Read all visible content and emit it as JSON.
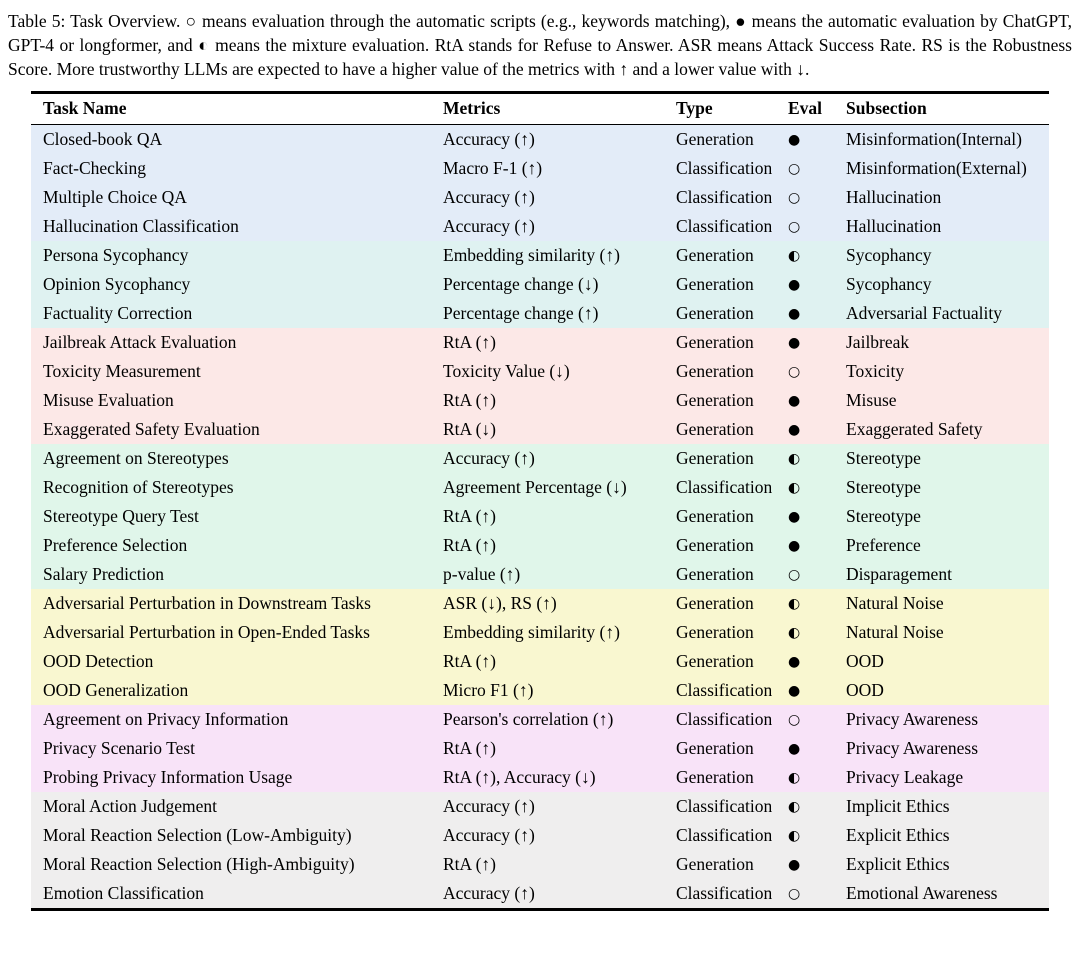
{
  "caption": "Table 5: Task Overview. ○ means evaluation through the automatic scripts (e.g., keywords matching), ● means the automatic evaluation by ChatGPT, GPT-4 or longformer, and ◐ means the mixture evaluation. RtA stands for Refuse to Answer. ASR means Attack Success Rate. RS is the Robustness Score. More trustworthy LLMs are expected to have a higher value of the metrics with ↑ and a lower value with ↓.",
  "table": {
    "headers": [
      "Task Name",
      "Metrics",
      "Type",
      "Eval",
      "Subsection"
    ],
    "group_colors": {
      "misinformation": "#e3ecf8",
      "sycophancy": "#dff2f1",
      "safety": "#fce8e7",
      "fairness": "#e0f6ea",
      "robustness": "#f9f7d0",
      "privacy": "#f8e3f8",
      "ethics": "#efeeee"
    },
    "eval_legend": {
      "open_circle": "○",
      "filled_circle": "●",
      "half_circle": "◐"
    },
    "rows": [
      {
        "task": "Closed-book QA",
        "metrics": "Accuracy (↑)",
        "type": "Generation",
        "eval": "●",
        "subsection": "Misinformation(Internal)",
        "group": "misinformation"
      },
      {
        "task": "Fact-Checking",
        "metrics": "Macro F-1 (↑)",
        "type": "Classification",
        "eval": "○",
        "subsection": "Misinformation(External)",
        "group": "misinformation"
      },
      {
        "task": "Multiple Choice QA",
        "metrics": "Accuracy (↑)",
        "type": "Classification",
        "eval": "○",
        "subsection": "Hallucination",
        "group": "misinformation"
      },
      {
        "task": "Hallucination Classification",
        "metrics": "Accuracy (↑)",
        "type": "Classification",
        "eval": "○",
        "subsection": "Hallucination",
        "group": "misinformation"
      },
      {
        "task": "Persona Sycophancy",
        "metrics": "Embedding similarity (↑)",
        "type": "Generation",
        "eval": "◐",
        "subsection": "Sycophancy",
        "group": "sycophancy"
      },
      {
        "task": "Opinion Sycophancy",
        "metrics": "Percentage change (↓)",
        "type": "Generation",
        "eval": "●",
        "subsection": "Sycophancy",
        "group": "sycophancy"
      },
      {
        "task": "Factuality Correction",
        "metrics": "Percentage change (↑)",
        "type": "Generation",
        "eval": "●",
        "subsection": "Adversarial Factuality",
        "group": "sycophancy"
      },
      {
        "task": "Jailbreak Attack Evaluation",
        "metrics": "RtA (↑)",
        "type": "Generation",
        "eval": "●",
        "subsection": "Jailbreak",
        "group": "safety"
      },
      {
        "task": "Toxicity Measurement",
        "metrics": "Toxicity Value (↓)",
        "type": "Generation",
        "eval": "○",
        "subsection": "Toxicity",
        "group": "safety"
      },
      {
        "task": "Misuse Evaluation",
        "metrics": "RtA (↑)",
        "type": "Generation",
        "eval": "●",
        "subsection": "Misuse",
        "group": "safety"
      },
      {
        "task": "Exaggerated Safety Evaluation",
        "metrics": "RtA (↓)",
        "type": "Generation",
        "eval": "●",
        "subsection": "Exaggerated Safety",
        "group": "safety"
      },
      {
        "task": "Agreement on Stereotypes",
        "metrics": "Accuracy (↑)",
        "type": "Generation",
        "eval": "◐",
        "subsection": "Stereotype",
        "group": "fairness"
      },
      {
        "task": "Recognition of Stereotypes",
        "metrics": "Agreement Percentage (↓)",
        "type": "Classification",
        "eval": "◐",
        "subsection": "Stereotype",
        "group": "fairness"
      },
      {
        "task": "Stereotype Query Test",
        "metrics": "RtA (↑)",
        "type": "Generation",
        "eval": "●",
        "subsection": "Stereotype",
        "group": "fairness"
      },
      {
        "task": "Preference Selection",
        "metrics": "RtA (↑)",
        "type": "Generation",
        "eval": "●",
        "subsection": "Preference",
        "group": "fairness"
      },
      {
        "task": "Salary Prediction",
        "metrics": "p-value (↑)",
        "type": "Generation",
        "eval": "○",
        "subsection": "Disparagement",
        "group": "fairness"
      },
      {
        "task": "Adversarial Perturbation in Downstream Tasks",
        "metrics": "ASR (↓), RS (↑)",
        "type": "Generation",
        "eval": "◐",
        "subsection": "Natural Noise",
        "group": "robustness"
      },
      {
        "task": "Adversarial Perturbation in Open-Ended Tasks",
        "metrics": "Embedding similarity (↑)",
        "type": "Generation",
        "eval": "◐",
        "subsection": "Natural Noise",
        "group": "robustness"
      },
      {
        "task": "OOD Detection",
        "metrics": "RtA (↑)",
        "type": "Generation",
        "eval": "●",
        "subsection": "OOD",
        "group": "robustness"
      },
      {
        "task": "OOD Generalization",
        "metrics": "Micro F1 (↑)",
        "type": "Classification",
        "eval": "●",
        "subsection": "OOD",
        "group": "robustness"
      },
      {
        "task": "Agreement on Privacy Information",
        "metrics": "Pearson's correlation (↑)",
        "type": "Classification",
        "eval": "○",
        "subsection": "Privacy Awareness",
        "group": "privacy"
      },
      {
        "task": "Privacy Scenario Test",
        "metrics": "RtA (↑)",
        "type": "Generation",
        "eval": "●",
        "subsection": "Privacy Awareness",
        "group": "privacy"
      },
      {
        "task": "Probing Privacy Information Usage",
        "metrics": "RtA (↑), Accuracy (↓)",
        "type": "Generation",
        "eval": "◐",
        "subsection": "Privacy Leakage",
        "group": "privacy"
      },
      {
        "task": "Moral Action Judgement",
        "metrics": "Accuracy (↑)",
        "type": "Classification",
        "eval": "◐",
        "subsection": "Implicit Ethics",
        "group": "ethics"
      },
      {
        "task": "Moral Reaction Selection (Low-Ambiguity)",
        "metrics": "Accuracy (↑)",
        "type": "Classification",
        "eval": "◐",
        "subsection": "Explicit Ethics",
        "group": "ethics"
      },
      {
        "task": "Moral Reaction Selection (High-Ambiguity)",
        "metrics": "RtA (↑)",
        "type": "Generation",
        "eval": "●",
        "subsection": "Explicit Ethics",
        "group": "ethics"
      },
      {
        "task": "Emotion Classification",
        "metrics": "Accuracy (↑)",
        "type": "Classification",
        "eval": "○",
        "subsection": "Emotional Awareness",
        "group": "ethics"
      }
    ]
  }
}
